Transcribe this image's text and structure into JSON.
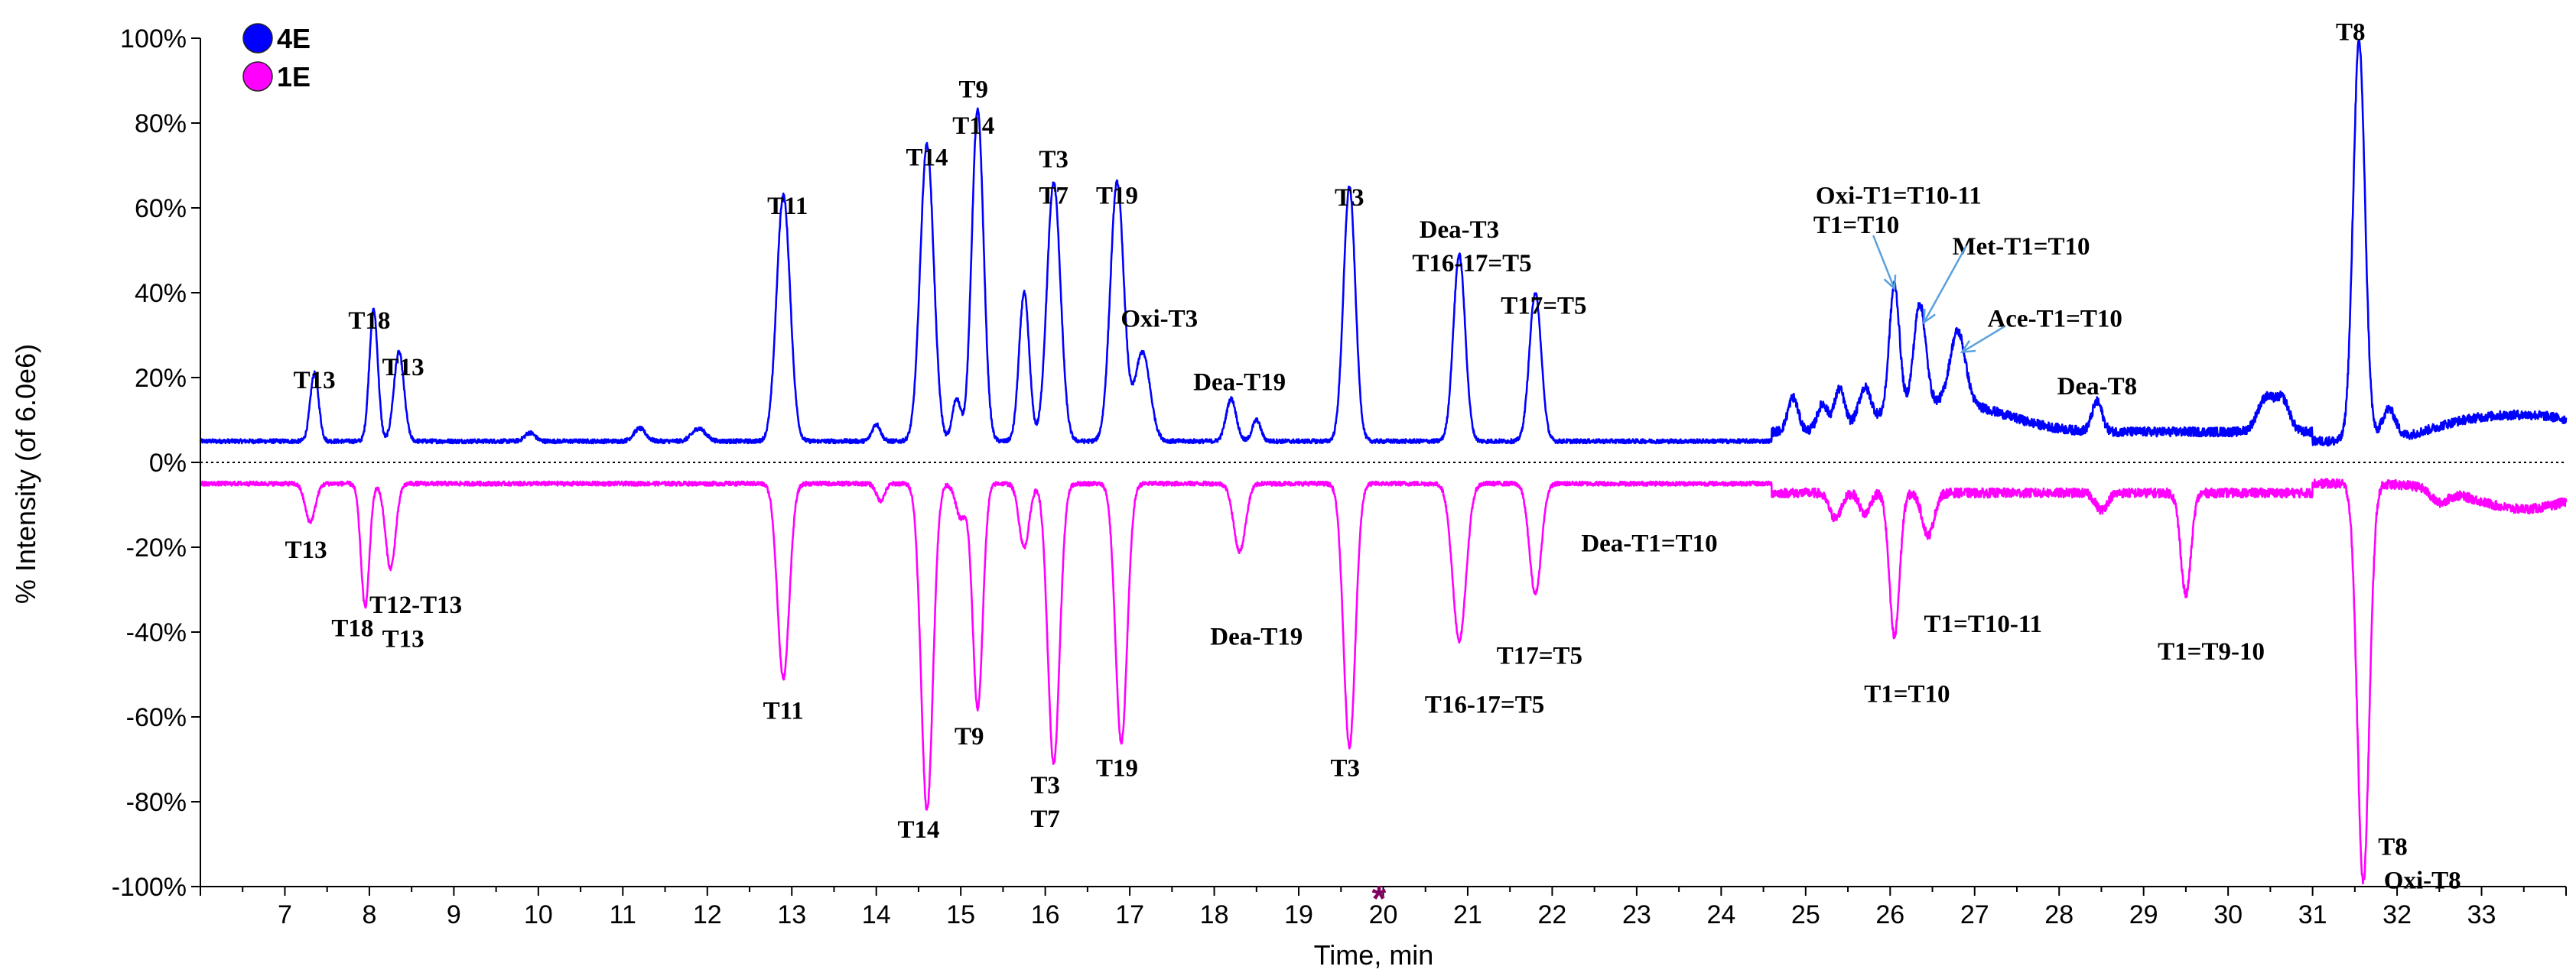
{
  "chart_data": {
    "type": "line",
    "ylabel": "% Intensity (of 6.0e6)",
    "xlabel": "Time, min",
    "xlim": [
      6.0,
      34.0
    ],
    "ylim": [
      -100,
      100
    ],
    "x_ticks": [
      7,
      8,
      9,
      10,
      11,
      12,
      13,
      14,
      15,
      16,
      17,
      18,
      19,
      20,
      21,
      22,
      23,
      24,
      25,
      26,
      27,
      28,
      29,
      30,
      31,
      32,
      33
    ],
    "y_ticks": [
      {
        "value": 100,
        "label": "100%"
      },
      {
        "value": 80,
        "label": "80%"
      },
      {
        "value": 60,
        "label": "60%"
      },
      {
        "value": 40,
        "label": "40%"
      },
      {
        "value": 20,
        "label": "20%"
      },
      {
        "value": 0,
        "label": "0%"
      },
      {
        "value": -20,
        "label": "-20%"
      },
      {
        "value": -40,
        "label": "-40%"
      },
      {
        "value": -60,
        "label": "-60%"
      },
      {
        "value": -80,
        "label": "-80%"
      },
      {
        "value": -100,
        "label": "-100%"
      }
    ],
    "legend": {
      "placement": "top-left",
      "items": [
        {
          "label": "4E",
          "color": "#0000ff"
        },
        {
          "label": "1E",
          "color": "#ff00ff"
        }
      ]
    },
    "series": [
      {
        "name": "4E",
        "color": "#0000ff",
        "baseline": 5,
        "peaks": [
          [
            7.35,
            16,
            0.05
          ],
          [
            8.05,
            31,
            0.05
          ],
          [
            8.35,
            21,
            0.06
          ],
          [
            9.9,
            2,
            0.06
          ],
          [
            11.2,
            3,
            0.07
          ],
          [
            11.9,
            3,
            0.08
          ],
          [
            12.9,
            58,
            0.08
          ],
          [
            14.0,
            4,
            0.05
          ],
          [
            14.6,
            70,
            0.08
          ],
          [
            14.95,
            10,
            0.05
          ],
          [
            15.2,
            78,
            0.07
          ],
          [
            15.75,
            35,
            0.06
          ],
          [
            16.1,
            61,
            0.08
          ],
          [
            16.85,
            61,
            0.08
          ],
          [
            17.15,
            21,
            0.09
          ],
          [
            18.2,
            10,
            0.06
          ],
          [
            18.5,
            5,
            0.05
          ],
          [
            19.6,
            60,
            0.07
          ],
          [
            20.9,
            44,
            0.07
          ],
          [
            21.8,
            35,
            0.07
          ],
          [
            24.85,
            8,
            0.06
          ],
          [
            25.2,
            6,
            0.06
          ],
          [
            25.4,
            9,
            0.06
          ],
          [
            25.7,
            8,
            0.07
          ],
          [
            26.05,
            30,
            0.06
          ],
          [
            26.35,
            24,
            0.07
          ],
          [
            26.8,
            17,
            0.09
          ],
          [
            28.45,
            7,
            0.06
          ],
          [
            30.45,
            8,
            0.1
          ],
          [
            30.65,
            7,
            0.08
          ],
          [
            31.55,
            94,
            0.07
          ],
          [
            31.9,
            7,
            0.08
          ]
        ],
        "humps": [
          [
            26.5,
            6,
            0.6
          ],
          [
            27.2,
            2,
            0.5
          ],
          [
            32.7,
            2,
            0.4
          ],
          [
            33.6,
            6,
            0.7
          ]
        ]
      },
      {
        "name": "1E",
        "color": "#ff00ff",
        "baseline": -5,
        "peaks": [
          [
            7.3,
            -9,
            0.06
          ],
          [
            7.95,
            -29,
            0.05
          ],
          [
            8.25,
            -20,
            0.06
          ],
          [
            12.9,
            -46,
            0.07
          ],
          [
            14.05,
            -4,
            0.05
          ],
          [
            14.6,
            -77,
            0.07
          ],
          [
            15.0,
            -8,
            0.06
          ],
          [
            15.2,
            -53,
            0.06
          ],
          [
            15.75,
            -15,
            0.06
          ],
          [
            16.1,
            -66,
            0.07
          ],
          [
            16.9,
            -61,
            0.07
          ],
          [
            18.3,
            -16,
            0.07
          ],
          [
            19.6,
            -62,
            0.07
          ],
          [
            20.9,
            -37,
            0.08
          ],
          [
            21.8,
            -26,
            0.07
          ],
          [
            25.35,
            -6,
            0.07
          ],
          [
            25.7,
            -5,
            0.06
          ],
          [
            26.05,
            -34,
            0.06
          ],
          [
            26.45,
            -10,
            0.07
          ],
          [
            28.5,
            -4,
            0.07
          ],
          [
            29.5,
            -24,
            0.06
          ],
          [
            31.6,
            -94,
            0.07
          ],
          [
            32.5,
            -3,
            0.1
          ]
        ],
        "humps": [
          [
            33.5,
            -6,
            0.6
          ]
        ]
      }
    ],
    "annotations": [
      {
        "text": "T13",
        "x": 7.35,
        "y": 19.5,
        "series": "4E"
      },
      {
        "text": "T18",
        "x": 8.0,
        "y": 33.5,
        "series": "4E"
      },
      {
        "text": "T13",
        "x": 8.4,
        "y": 22.5,
        "series": "4E"
      },
      {
        "text": "T11",
        "x": 12.95,
        "y": 60.5,
        "series": "4E"
      },
      {
        "text": "T14",
        "x": 14.6,
        "y": 72,
        "series": "4E"
      },
      {
        "text": "T9",
        "x": 15.15,
        "y": 88,
        "series": "4E"
      },
      {
        "text": "T14",
        "x": 15.15,
        "y": 79.5,
        "series": "4E"
      },
      {
        "text": "T3",
        "x": 16.1,
        "y": 71.5,
        "series": "4E"
      },
      {
        "text": "T7",
        "x": 16.1,
        "y": 63,
        "series": "4E"
      },
      {
        "text": "T19",
        "x": 16.85,
        "y": 63,
        "series": "4E"
      },
      {
        "text": "Oxi-T3",
        "x": 17.35,
        "y": 34,
        "series": "4E"
      },
      {
        "text": "Dea-T19",
        "x": 18.3,
        "y": 19,
        "series": "4E"
      },
      {
        "text": "T3",
        "x": 19.6,
        "y": 62.5,
        "series": "4E"
      },
      {
        "text": "Dea-T3",
        "x": 20.9,
        "y": 55,
        "series": "4E"
      },
      {
        "text": "T16-17=T5",
        "x": 21.05,
        "y": 47,
        "series": "4E"
      },
      {
        "text": "T17=T5",
        "x": 21.9,
        "y": 37,
        "series": "4E"
      },
      {
        "text": "Oxi-T1=T10-11",
        "x": 26.1,
        "y": 63,
        "series": "4E"
      },
      {
        "text": "T1=T10",
        "x": 25.6,
        "y": 56,
        "series": "4E"
      },
      {
        "text": "Met-T1=T10",
        "x": 27.55,
        "y": 51,
        "series": "4E"
      },
      {
        "text": "Ace-T1=T10",
        "x": 27.95,
        "y": 34,
        "series": "4E"
      },
      {
        "text": "Dea-T8",
        "x": 28.45,
        "y": 18,
        "series": "4E"
      },
      {
        "text": "T8",
        "x": 31.45,
        "y": 101.5,
        "series": "4E"
      },
      {
        "text": "T13",
        "x": 7.25,
        "y": -20.5,
        "series": "1E"
      },
      {
        "text": "T18",
        "x": 7.8,
        "y": -39,
        "series": "1E"
      },
      {
        "text": "T12-T13",
        "x": 8.55,
        "y": -33.5,
        "series": "1E"
      },
      {
        "text": "T13",
        "x": 8.4,
        "y": -41.5,
        "series": "1E"
      },
      {
        "text": "T11",
        "x": 12.9,
        "y": -58.5,
        "series": "1E"
      },
      {
        "text": "T14",
        "x": 14.5,
        "y": -86.5,
        "series": "1E"
      },
      {
        "text": "T9",
        "x": 15.1,
        "y": -64.5,
        "series": "1E"
      },
      {
        "text": "T3",
        "x": 16.0,
        "y": -76,
        "series": "1E"
      },
      {
        "text": "T7",
        "x": 16.0,
        "y": -84,
        "series": "1E"
      },
      {
        "text": "T19",
        "x": 16.85,
        "y": -72,
        "series": "1E"
      },
      {
        "text": "Dea-T19",
        "x": 18.5,
        "y": -41,
        "series": "1E"
      },
      {
        "text": "T3",
        "x": 19.55,
        "y": -72,
        "series": "1E"
      },
      {
        "text": "Dea-T1=T10",
        "x": 23.15,
        "y": -19,
        "series": "1E"
      },
      {
        "text": "T17=T5",
        "x": 21.85,
        "y": -45.5,
        "series": "1E"
      },
      {
        "text": "T16-17=T5",
        "x": 21.2,
        "y": -57,
        "series": "1E"
      },
      {
        "text": "T1=T10-11",
        "x": 27.1,
        "y": -38,
        "series": "1E"
      },
      {
        "text": "T1=T10",
        "x": 26.2,
        "y": -54.5,
        "series": "1E"
      },
      {
        "text": "T1=T9-10",
        "x": 29.8,
        "y": -44.5,
        "series": "1E"
      },
      {
        "text": "T8",
        "x": 31.95,
        "y": -90.5,
        "series": "1E"
      },
      {
        "text": "Oxi-T8",
        "x": 32.3,
        "y": -98.5,
        "series": "1E"
      }
    ],
    "arrows": [
      {
        "from": [
          25.8,
          53.5
        ],
        "to": [
          26.05,
          41
        ]
      },
      {
        "from": [
          26.9,
          51
        ],
        "to": [
          26.4,
          33
        ]
      },
      {
        "from": [
          27.35,
          32
        ],
        "to": [
          26.85,
          26
        ]
      }
    ],
    "marker": {
      "symbol": "*",
      "x": 19.95,
      "color": "#800060"
    }
  }
}
